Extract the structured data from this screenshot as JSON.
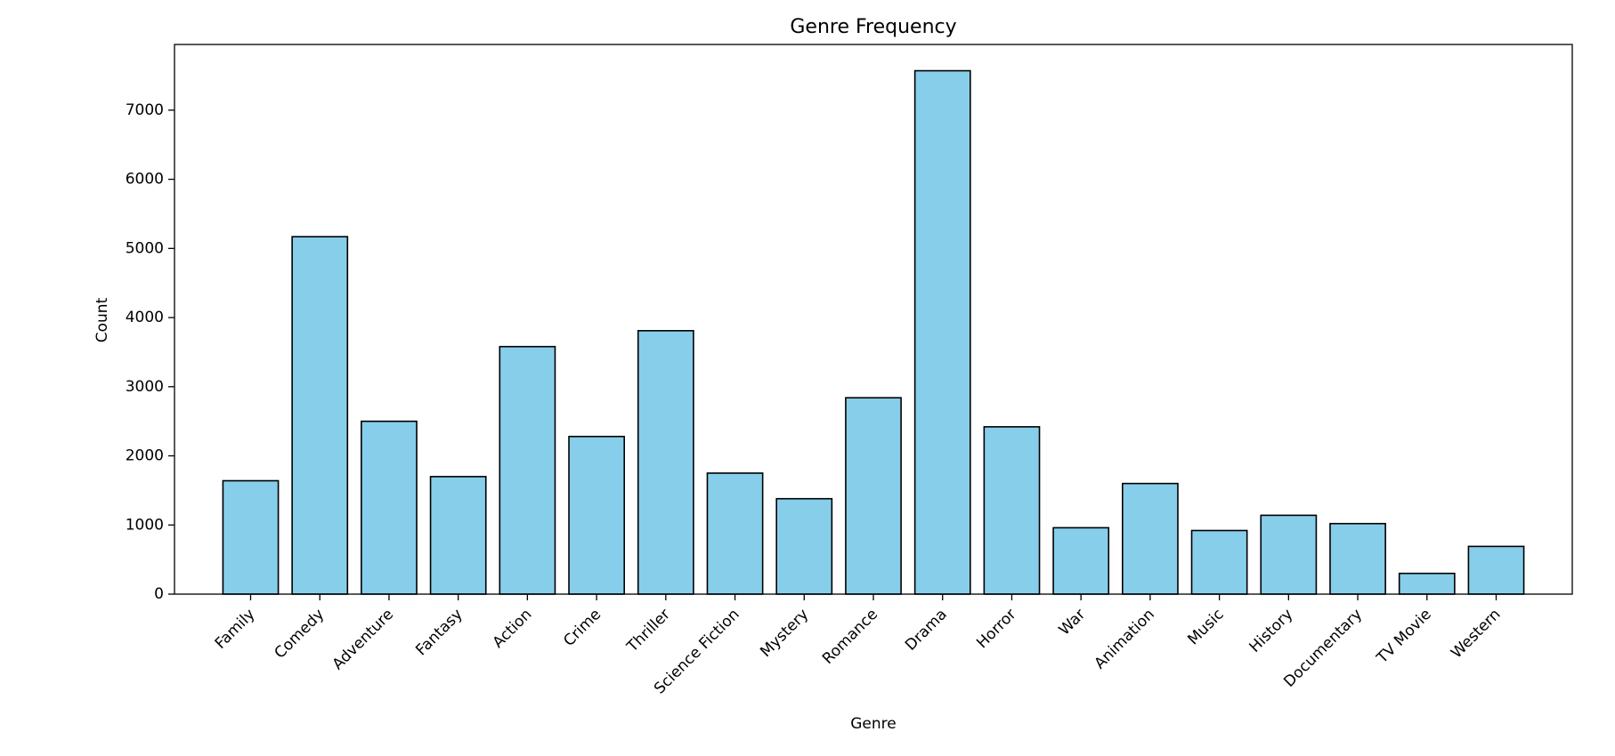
{
  "chart_data": {
    "type": "bar",
    "title": "Genre Frequency",
    "xlabel": "Genre",
    "ylabel": "Count",
    "categories": [
      "Family",
      "Comedy",
      "Adventure",
      "Fantasy",
      "Action",
      "Crime",
      "Thriller",
      "Science Fiction",
      "Mystery",
      "Romance",
      "Drama",
      "Horror",
      "War",
      "Animation",
      "Music",
      "History",
      "Documentary",
      "TV Movie",
      "Western"
    ],
    "values": [
      1640,
      5170,
      2500,
      1700,
      3580,
      2280,
      3810,
      1750,
      1380,
      2840,
      7570,
      2420,
      960,
      1600,
      920,
      1140,
      1020,
      300,
      690
    ],
    "ylim": [
      0,
      7950
    ],
    "yticks": [
      0,
      1000,
      2000,
      3000,
      4000,
      5000,
      6000,
      7000
    ],
    "bar_color": "#87ceeb",
    "bar_edge_color": "#000000",
    "grid": false,
    "legend": "none"
  }
}
